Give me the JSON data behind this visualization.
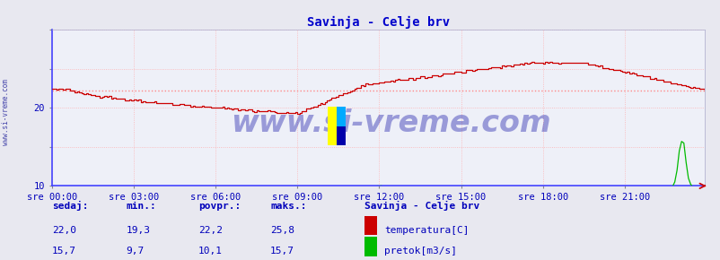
{
  "title": "Savinja - Celje brv",
  "title_color": "#0000cc",
  "bg_color": "#e8e8f0",
  "plot_bg_color": "#eef0f8",
  "grid_color": "#ffaaaa",
  "grid_style": ":",
  "xlim": [
    0,
    287
  ],
  "ylim": [
    10,
    30
  ],
  "yticks": [
    10,
    15,
    20,
    25,
    30
  ],
  "ytick_labels": [
    "10",
    "",
    "20",
    "",
    ""
  ],
  "xtick_labels": [
    "sre 00:00",
    "sre 03:00",
    "sre 06:00",
    "sre 09:00",
    "sre 12:00",
    "sre 15:00",
    "sre 18:00",
    "sre 21:00"
  ],
  "xtick_positions": [
    0,
    36,
    72,
    108,
    144,
    180,
    216,
    252
  ],
  "temp_color": "#cc0000",
  "flow_color": "#00bb00",
  "avg_line_color": "#ff8888",
  "avg_line_style": ":",
  "avg_temp": 22.2,
  "watermark_text": "www.si-vreme.com",
  "watermark_color": "#1a1aaa",
  "watermark_alpha": 0.4,
  "watermark_fontsize": 24,
  "border_color": "#4444ff",
  "legend_title": "Savinja - Celje brv",
  "text_color": "#0000bb",
  "headers": [
    "sedaj:",
    "min.:",
    "povpr.:",
    "maks.:"
  ],
  "temp_row": [
    "22,0",
    "19,3",
    "22,2",
    "25,8"
  ],
  "flow_row": [
    "15,7",
    "9,7",
    "10,1",
    "15,7"
  ],
  "left_label": "www.si-vreme.com",
  "left_label_color": "#4444aa"
}
